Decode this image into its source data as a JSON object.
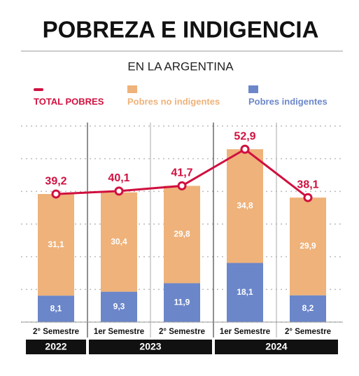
{
  "chart_data": {
    "type": "bar",
    "title": "POBREZA E INDIGENCIA",
    "subtitle": "EN LA ARGENTINA",
    "categories": [
      "2° Semestre",
      "1er Semestre",
      "2° Semestre",
      "1er Semestre",
      "2° Semestre"
    ],
    "groups": [
      {
        "label": "2022",
        "span": 1
      },
      {
        "label": "2023",
        "span": 2
      },
      {
        "label": "2024",
        "span": 2
      }
    ],
    "series": [
      {
        "name": "TOTAL POBRES",
        "type": "line",
        "color": "#d0103f",
        "values": [
          39.2,
          40.1,
          41.7,
          52.9,
          38.1
        ],
        "value_labels": [
          "39,2",
          "40,1",
          "41,7",
          "52,9",
          "38,1"
        ]
      },
      {
        "name": "Pobres no indigentes",
        "type": "bar",
        "stack": 1,
        "color": "#eeb27a",
        "values": [
          31.1,
          30.4,
          29.8,
          34.8,
          29.9
        ],
        "value_labels": [
          "31,1",
          "30,4",
          "29,8",
          "34,8",
          "29,9"
        ]
      },
      {
        "name": "Pobres indigentes",
        "type": "bar",
        "stack": 0,
        "color": "#6b86c9",
        "values": [
          8.1,
          9.3,
          11.9,
          18.1,
          8.2
        ],
        "value_labels": [
          "8,1",
          "9,3",
          "11,9",
          "18,1",
          "8,2"
        ]
      }
    ],
    "ylim": [
      0,
      60
    ],
    "yticks": [
      0,
      10,
      20,
      30,
      40,
      50,
      60
    ],
    "grid": true
  }
}
